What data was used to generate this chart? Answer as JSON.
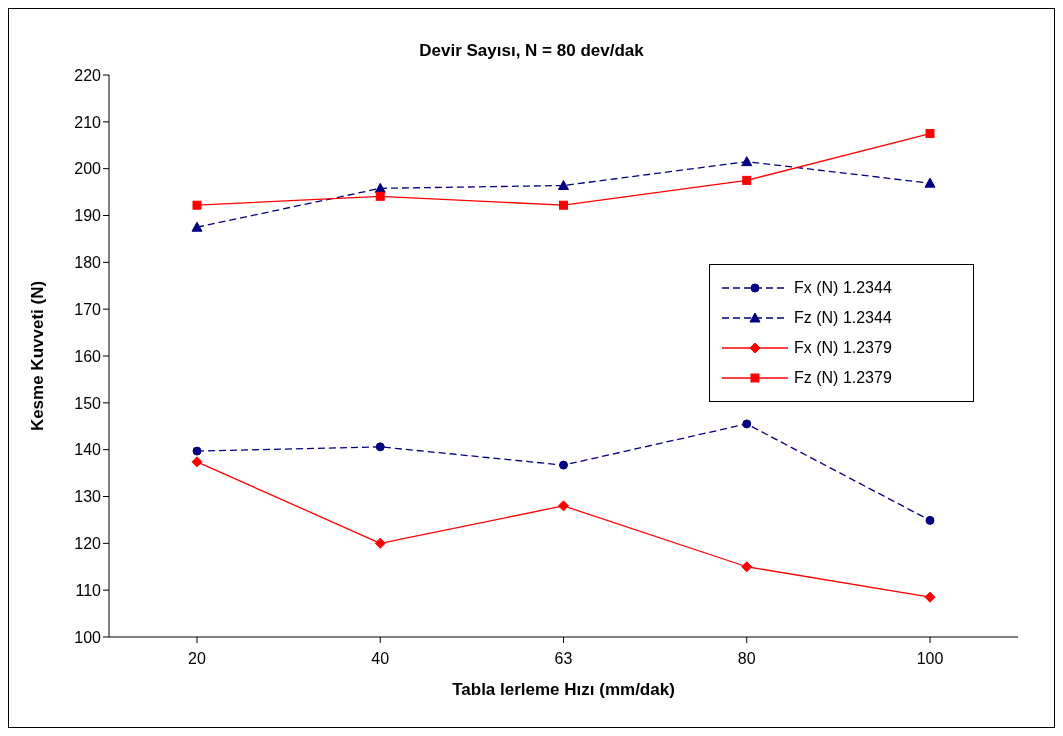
{
  "chart_data": {
    "type": "line",
    "title": "Devir Sayısı, N = 80 dev/dak",
    "xlabel": "Tabla  lerleme Hızı (mm/dak)",
    "ylabel": "Kesme Kuvveti (N)",
    "categories": [
      "20",
      "40",
      "63",
      "80",
      "100"
    ],
    "series": [
      {
        "name": "Fx (N) 1.2344",
        "color": "#000080",
        "marker": "circle",
        "line_style": "dashed",
        "values": [
          139.7,
          140.6,
          136.7,
          145.5,
          124.9
        ]
      },
      {
        "name": "Fz (N) 1.2344",
        "color": "#000080",
        "marker": "triangle",
        "line_style": "dashed",
        "values": [
          187.5,
          195.8,
          196.4,
          201.5,
          196.9
        ]
      },
      {
        "name": "Fx (N) 1.2379",
        "color": "#ff0000",
        "marker": "diamond",
        "line_style": "solid",
        "values": [
          137.4,
          120.0,
          128.0,
          115.0,
          108.5
        ]
      },
      {
        "name": "Fz (N) 1.2379",
        "color": "#ff0000",
        "marker": "square",
        "line_style": "solid",
        "values": [
          192.2,
          194.1,
          192.2,
          197.5,
          207.5
        ]
      }
    ],
    "ylim": [
      100,
      220
    ],
    "yticks": [
      100,
      110,
      120,
      130,
      140,
      150,
      160,
      170,
      180,
      190,
      200,
      210,
      220
    ],
    "grid": false,
    "legend": "right"
  }
}
